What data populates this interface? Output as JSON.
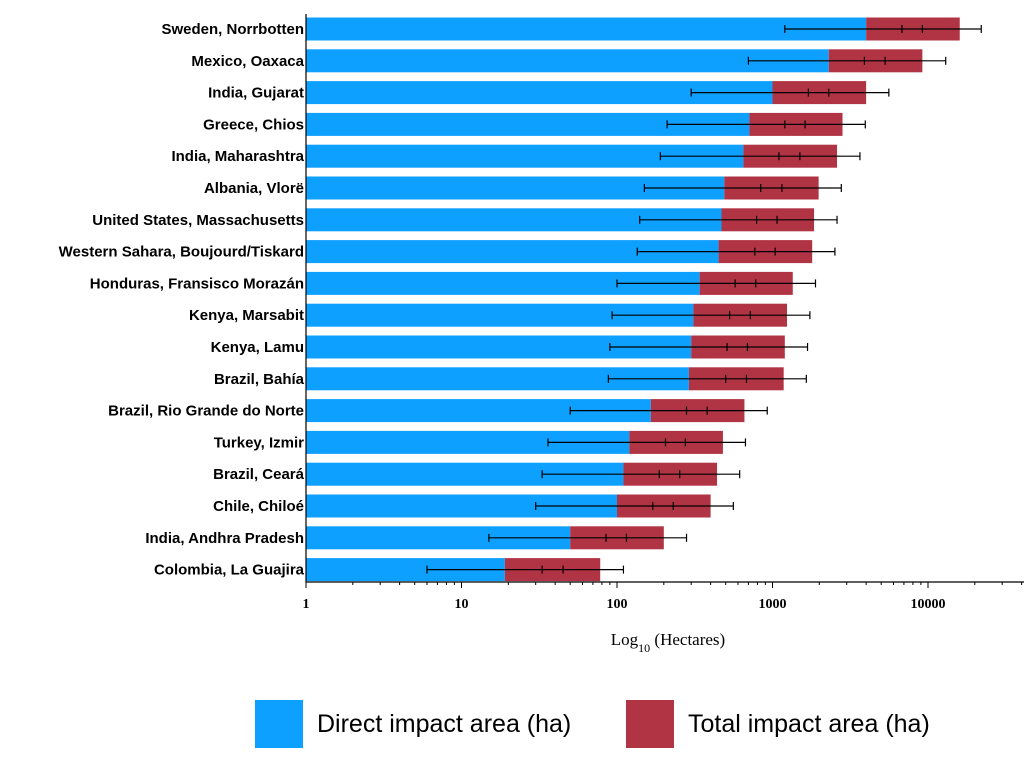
{
  "chart_data": {
    "type": "bar",
    "orientation": "horizontal",
    "stacked": true,
    "x_scale": "log",
    "xlim": [
      1,
      45000
    ],
    "x_ticks": [
      "1",
      "10",
      "100",
      "1000",
      "10000"
    ],
    "xlabel_main": "Log",
    "xlabel_sub": "10",
    "xlabel_rest": " (Hectares)",
    "legend_position": "bottom",
    "grid": false,
    "categories": [
      "Sweden, Norrbotten",
      "Mexico, Oaxaca",
      "India, Gujarat",
      "Greece, Chios",
      "India, Maharashtra",
      "Albania, Vlorë",
      "United States, Massachusetts",
      "Western Sahara, Boujourd/Tiskard",
      "Honduras, Fransisco Morazán",
      "Kenya, Marsabit",
      "Kenya, Lamu",
      "Brazil, Bahía",
      "Brazil, Rio Grande do Norte",
      "Turkey, Izmir",
      "Brazil, Ceará",
      "Chile, Chiloé",
      "India, Andhra Pradesh",
      "Colombia, La Guajira"
    ],
    "series": [
      {
        "name": "Direct impact area (ha)",
        "color": "#0ea0ff",
        "values": [
          4000,
          2300,
          1000,
          710,
          650,
          490,
          470,
          450,
          340,
          310,
          300,
          290,
          165,
          120,
          110,
          100,
          50,
          19
        ],
        "error_low": [
          1200,
          700,
          300,
          210,
          190,
          150,
          140,
          135,
          100,
          93,
          90,
          88,
          50,
          36,
          33,
          30,
          15,
          6
        ]
      },
      {
        "name": "Total impact area (ha)",
        "color": "#b03443",
        "values": [
          16000,
          9200,
          4000,
          2820,
          2600,
          1980,
          1850,
          1800,
          1350,
          1240,
          1200,
          1180,
          660,
          480,
          440,
          400,
          200,
          78
        ],
        "error_low": [
          6800,
          3900,
          1700,
          1200,
          1100,
          840,
          790,
          770,
          575,
          530,
          510,
          500,
          280,
          205,
          187,
          170,
          85,
          33
        ],
        "error_mid": [
          9200,
          5300,
          2300,
          1620,
          1500,
          1150,
          1070,
          1040,
          780,
          720,
          690,
          680,
          380,
          275,
          253,
          230,
          115,
          45
        ],
        "error_high": [
          22000,
          13000,
          5600,
          3950,
          3650,
          2770,
          2600,
          2520,
          1890,
          1740,
          1680,
          1650,
          925,
          670,
          615,
          560,
          280,
          110
        ]
      }
    ]
  }
}
